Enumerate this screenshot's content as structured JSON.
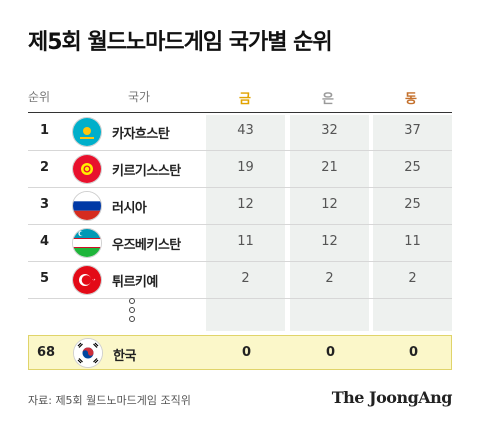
{
  "title": "제5회 월드노마드게임 국가별 순위",
  "header": {
    "rank": "순위",
    "country": "국가",
    "gold": "금",
    "silver": "은",
    "bronze": "동"
  },
  "colors": {
    "gold": "#e2a300",
    "silver": "#9a9a9a",
    "bronze": "#c4702c",
    "highlight": "#fbf7c9"
  },
  "rows": [
    {
      "rank": "1",
      "country": "카자흐스탄",
      "flag": "kazakhstan-flag-icon",
      "gold": "43",
      "silver": "32",
      "bronze": "37"
    },
    {
      "rank": "2",
      "country": "키르기스스탄",
      "flag": "kyrgyzstan-flag-icon",
      "gold": "19",
      "silver": "21",
      "bronze": "25"
    },
    {
      "rank": "3",
      "country": "러시아",
      "flag": "russia-flag-icon",
      "gold": "12",
      "silver": "12",
      "bronze": "25"
    },
    {
      "rank": "4",
      "country": "우즈베키스탄",
      "flag": "uzbekistan-flag-icon",
      "gold": "11",
      "silver": "12",
      "bronze": "11"
    },
    {
      "rank": "5",
      "country": "튀르키예",
      "flag": "turkey-flag-icon",
      "gold": "2",
      "silver": "2",
      "bronze": "2"
    }
  ],
  "korea": {
    "rank": "68",
    "country": "한국",
    "flag": "south-korea-flag-icon",
    "gold": "0",
    "silver": "0",
    "bronze": "0"
  },
  "source": "자료: 제5회 월드노마드게임 조직위",
  "brand": "The JoongAng"
}
